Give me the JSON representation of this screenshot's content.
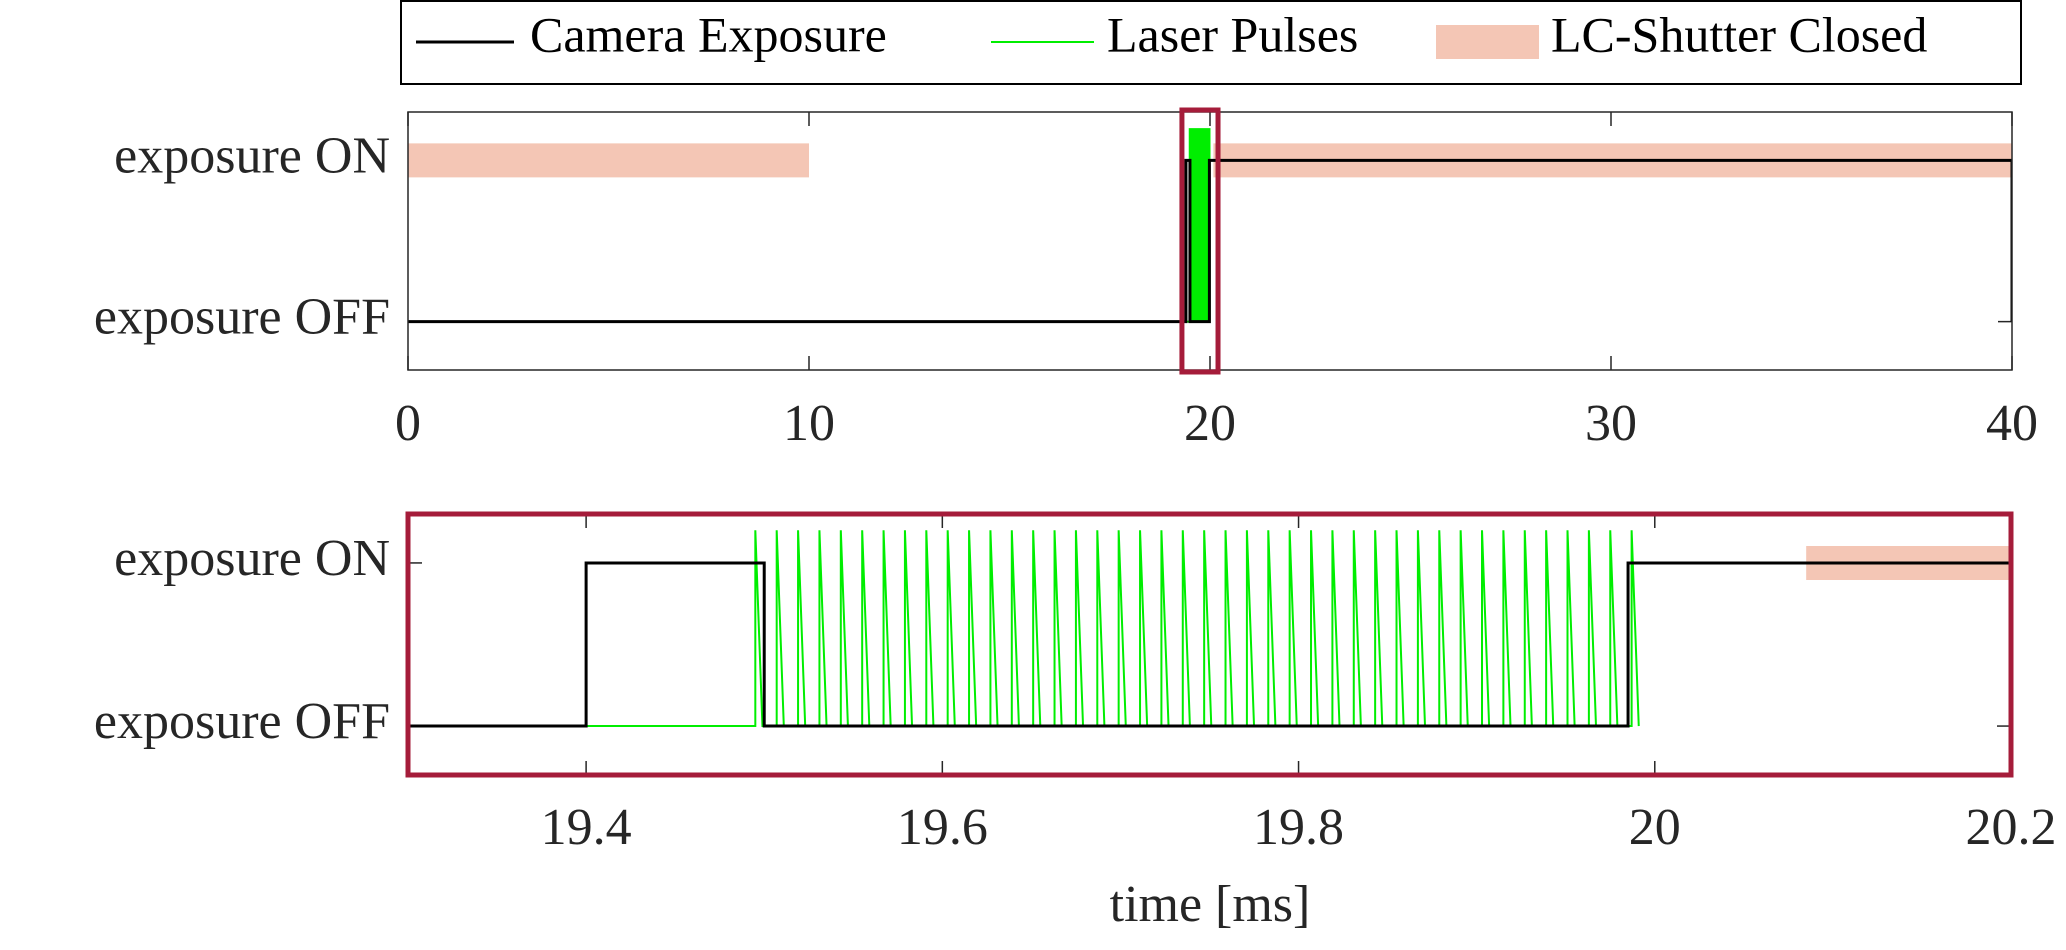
{
  "chart_data": {
    "type": "line",
    "xlabel": "time [ms]",
    "ylim": [
      -0.3,
      1.3
    ],
    "yticks": [
      {
        "value": 0,
        "label": "exposure OFF"
      },
      {
        "value": 1,
        "label": "exposure ON"
      }
    ],
    "zoom_color": "#a51c3a",
    "panels": [
      {
        "xlim": [
          0,
          40
        ],
        "xticks": [
          0,
          10,
          20,
          30,
          40
        ]
      },
      {
        "xlim": [
          19.3,
          20.2
        ],
        "xticks": [
          19.4,
          19.6,
          19.8,
          20,
          20.2
        ]
      }
    ],
    "series": [
      {
        "name": "Camera Exposure",
        "color": "#000000",
        "style": "line",
        "x": [
          0,
          19.4,
          19.4,
          19.5,
          19.5,
          19.985,
          19.985,
          40,
          40
        ],
        "values": [
          0,
          0,
          1,
          1,
          0,
          0,
          1,
          1,
          0
        ]
      },
      {
        "name": "Laser Pulses",
        "color": "#00ee00",
        "style": "line",
        "x": [
          19.4,
          19.495,
          19.495,
          19.499,
          19.507,
          19.507,
          19.511,
          19.519,
          19.519,
          19.523,
          19.531,
          19.531,
          19.535,
          19.543,
          19.543,
          19.547,
          19.555,
          19.555,
          19.559,
          19.567,
          19.567,
          19.571,
          19.579,
          19.579,
          19.583,
          19.591,
          19.591,
          19.595,
          19.603,
          19.603,
          19.607,
          19.615,
          19.615,
          19.619,
          19.627,
          19.627,
          19.631,
          19.639,
          19.639,
          19.643,
          19.651,
          19.651,
          19.655,
          19.663,
          19.663,
          19.667,
          19.675,
          19.675,
          19.679,
          19.687,
          19.687,
          19.691,
          19.699,
          19.699,
          19.703,
          19.711,
          19.711,
          19.715,
          19.723,
          19.723,
          19.727,
          19.735,
          19.735,
          19.739,
          19.747,
          19.747,
          19.751,
          19.759,
          19.759,
          19.763,
          19.771,
          19.771,
          19.775,
          19.783,
          19.783,
          19.787,
          19.795,
          19.795,
          19.799,
          19.807,
          19.807,
          19.811,
          19.819,
          19.819,
          19.823,
          19.831,
          19.831,
          19.835,
          19.843,
          19.843,
          19.847,
          19.855,
          19.855,
          19.859,
          19.867,
          19.867,
          19.871,
          19.879,
          19.879,
          19.883,
          19.891,
          19.891,
          19.895,
          19.903,
          19.903,
          19.907,
          19.915,
          19.915,
          19.919,
          19.927,
          19.927,
          19.931,
          19.939,
          19.939,
          19.943,
          19.951,
          19.951,
          19.955,
          19.963,
          19.963,
          19.967,
          19.975,
          19.975,
          19.979,
          19.987,
          19.987,
          19.991
        ],
        "values": [
          0,
          0,
          1.2,
          0,
          0,
          1.2,
          0,
          0,
          1.2,
          0,
          0,
          1.2,
          0,
          0,
          1.2,
          0,
          0,
          1.2,
          0,
          0,
          1.2,
          0,
          0,
          1.2,
          0,
          0,
          1.2,
          0,
          0,
          1.2,
          0,
          0,
          1.2,
          0,
          0,
          1.2,
          0,
          0,
          1.2,
          0,
          0,
          1.2,
          0,
          0,
          1.2,
          0,
          0,
          1.2,
          0,
          0,
          1.2,
          0,
          0,
          1.2,
          0,
          0,
          1.2,
          0,
          0,
          1.2,
          0,
          0,
          1.2,
          0,
          0,
          1.2,
          0,
          0,
          1.2,
          0,
          0,
          1.2,
          0,
          0,
          1.2,
          0,
          0,
          1.2,
          0,
          0,
          1.2,
          0,
          0,
          1.2,
          0,
          0,
          1.2,
          0,
          0,
          1.2,
          0,
          0,
          1.2,
          0,
          0,
          1.2,
          0,
          0,
          1.2,
          0,
          0,
          1.2,
          0,
          0,
          1.2,
          0,
          0,
          1.2,
          0,
          0,
          1.2,
          0,
          0,
          1.2,
          0,
          0,
          1.2,
          0,
          0,
          1.2,
          0,
          0,
          1.2,
          0,
          0,
          1.2,
          0
        ]
      },
      {
        "name": "LC-Shutter Closed",
        "color": "#f4c6b5",
        "style": "band",
        "x": [
          0,
          10,
          10,
          20.085,
          40
        ],
        "values": [
          1,
          1,
          null,
          1,
          1
        ]
      }
    ]
  }
}
